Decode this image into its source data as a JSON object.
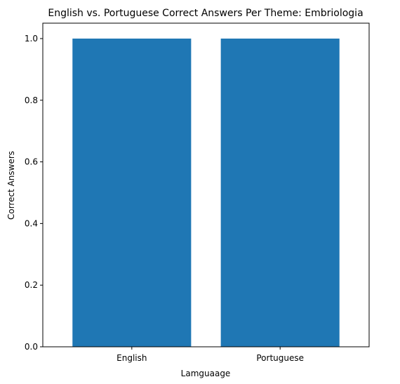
{
  "chart_data": {
    "type": "bar",
    "title": "English vs. Portuguese Correct Answers Per Theme: Embriologia",
    "xlabel": "Lamguaage",
    "ylabel": "Correct Answers",
    "categories": [
      "English",
      "Portuguese"
    ],
    "values": [
      1.0,
      1.0
    ],
    "ylim": [
      0,
      1.05
    ],
    "yticks": [
      "0.0",
      "0.2",
      "0.4",
      "0.6",
      "0.8",
      "1.0"
    ],
    "grid": false,
    "bar_color": "#1f77b4"
  }
}
